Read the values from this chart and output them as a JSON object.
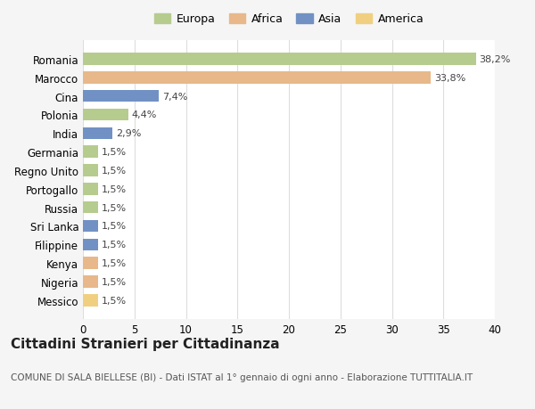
{
  "countries": [
    "Romania",
    "Marocco",
    "Cina",
    "Polonia",
    "India",
    "Germania",
    "Regno Unito",
    "Portogallo",
    "Russia",
    "Sri Lanka",
    "Filippine",
    "Kenya",
    "Nigeria",
    "Messico"
  ],
  "values": [
    38.2,
    33.8,
    7.4,
    4.4,
    2.9,
    1.5,
    1.5,
    1.5,
    1.5,
    1.5,
    1.5,
    1.5,
    1.5,
    1.5
  ],
  "labels": [
    "38,2%",
    "33,8%",
    "7,4%",
    "4,4%",
    "2,9%",
    "1,5%",
    "1,5%",
    "1,5%",
    "1,5%",
    "1,5%",
    "1,5%",
    "1,5%",
    "1,5%",
    "1,5%"
  ],
  "continents": [
    "Europa",
    "Africa",
    "Asia",
    "Europa",
    "Asia",
    "Europa",
    "Europa",
    "Europa",
    "Europa",
    "Asia",
    "Asia",
    "Africa",
    "Africa",
    "America"
  ],
  "colors": {
    "Europa": "#b5cc8e",
    "Africa": "#e8b88a",
    "Asia": "#7191c4",
    "America": "#f0d080"
  },
  "legend_order": [
    "Europa",
    "Africa",
    "Asia",
    "America"
  ],
  "title": "Cittadini Stranieri per Cittadinanza",
  "subtitle": "COMUNE DI SALA BIELLESE (BI) - Dati ISTAT al 1° gennaio di ogni anno - Elaborazione TUTTITALIA.IT",
  "xlim": [
    0,
    40
  ],
  "xticks": [
    0,
    5,
    10,
    15,
    20,
    25,
    30,
    35,
    40
  ],
  "background_color": "#f5f5f5",
  "plot_background": "#ffffff",
  "grid_color": "#dddddd",
  "title_fontsize": 11,
  "subtitle_fontsize": 7.5,
  "label_fontsize": 8,
  "tick_fontsize": 8.5,
  "legend_fontsize": 9
}
